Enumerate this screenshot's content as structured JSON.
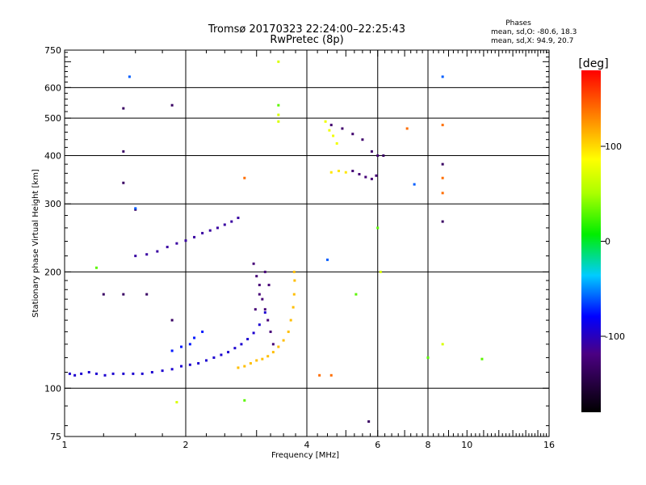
{
  "header": {
    "title_line1": "Tromsø 20170323 22:24:00–22:25:43",
    "title_line2": "RwPretec (8p)"
  },
  "stats": {
    "heading": "Phases",
    "line_o": "mean, sd,O: -80.6, 18.3",
    "line_x": "mean, sd,X:  94.9, 20.7"
  },
  "colorbar": {
    "label": "[deg]",
    "range": [
      -180,
      180
    ],
    "ticks": [
      {
        "value": 100,
        "label": "100"
      },
      {
        "value": 0,
        "label": "0"
      },
      {
        "value": -100,
        "label": "-100"
      }
    ]
  },
  "chart_data": {
    "type": "scatter",
    "xlabel": "Frequency [MHz]",
    "ylabel": "Stationary phase Virtual Height [km]",
    "xscale": "log",
    "yscale": "log",
    "xlim": [
      1,
      16
    ],
    "ylim": [
      75,
      750
    ],
    "xticks": [
      {
        "value": 1,
        "label": "1"
      },
      {
        "value": 2,
        "label": "2"
      },
      {
        "value": 4,
        "label": "4"
      },
      {
        "value": 6,
        "label": "6"
      },
      {
        "value": 8,
        "label": "8"
      },
      {
        "value": 10,
        "label": "10"
      },
      {
        "value": 16,
        "label": "16"
      }
    ],
    "yticks": [
      {
        "value": 75,
        "label": "75"
      },
      {
        "value": 100,
        "label": "100"
      },
      {
        "value": 200,
        "label": "200"
      },
      {
        "value": 300,
        "label": "300"
      },
      {
        "value": 400,
        "label": "400"
      },
      {
        "value": 500,
        "label": "500"
      },
      {
        "value": 600,
        "label": "600"
      },
      {
        "value": 750,
        "label": "750"
      }
    ],
    "grid_x": [
      2,
      4,
      6,
      8
    ],
    "grid_y": [
      100,
      200,
      300,
      400,
      500,
      600
    ],
    "traces": [
      {
        "phase": -95,
        "points": [
          [
            1.03,
            109
          ],
          [
            1.06,
            108
          ],
          [
            1.1,
            109
          ],
          [
            1.15,
            110
          ],
          [
            1.2,
            109
          ],
          [
            1.26,
            108
          ],
          [
            1.32,
            109
          ],
          [
            1.4,
            109
          ],
          [
            1.48,
            109
          ],
          [
            1.56,
            109
          ],
          [
            1.65,
            110
          ],
          [
            1.75,
            111
          ],
          [
            1.85,
            112
          ],
          [
            1.95,
            114
          ],
          [
            2.05,
            115
          ],
          [
            2.15,
            116
          ],
          [
            2.25,
            118
          ],
          [
            2.35,
            120
          ],
          [
            2.45,
            122
          ],
          [
            2.55,
            124
          ],
          [
            2.65,
            127
          ],
          [
            2.75,
            130
          ],
          [
            2.85,
            134
          ],
          [
            2.95,
            139
          ],
          [
            3.05,
            146
          ],
          [
            3.15,
            157
          ]
        ]
      },
      {
        "phase": -110,
        "points": [
          [
            1.5,
            220
          ],
          [
            1.6,
            222
          ],
          [
            1.7,
            226
          ],
          [
            1.8,
            232
          ],
          [
            1.9,
            237
          ],
          [
            2.0,
            241
          ],
          [
            2.1,
            246
          ],
          [
            2.2,
            252
          ],
          [
            2.3,
            256
          ],
          [
            2.4,
            260
          ],
          [
            2.5,
            265
          ],
          [
            2.6,
            270
          ],
          [
            2.7,
            276
          ]
        ]
      },
      {
        "phase": 110,
        "points": [
          [
            2.7,
            113
          ],
          [
            2.8,
            114
          ],
          [
            2.9,
            116
          ],
          [
            3.0,
            118
          ],
          [
            3.1,
            119
          ],
          [
            3.2,
            121
          ],
          [
            3.3,
            124
          ],
          [
            3.4,
            128
          ],
          [
            3.5,
            133
          ],
          [
            3.6,
            140
          ],
          [
            3.65,
            150
          ],
          [
            3.7,
            162
          ],
          [
            3.72,
            175
          ],
          [
            3.73,
            190
          ],
          [
            3.72,
            200
          ]
        ]
      },
      {
        "phase": -125,
        "points": [
          [
            2.95,
            210
          ],
          [
            3.0,
            195
          ],
          [
            3.05,
            185
          ],
          [
            3.1,
            170
          ],
          [
            3.15,
            160
          ],
          [
            3.2,
            150
          ],
          [
            3.25,
            140
          ],
          [
            3.3,
            130
          ],
          [
            3.05,
            175
          ],
          [
            3.15,
            200
          ],
          [
            2.98,
            160
          ],
          [
            3.22,
            185
          ]
        ]
      },
      {
        "phase": -130,
        "points": [
          [
            4.6,
            480
          ],
          [
            4.9,
            470
          ],
          [
            5.2,
            455
          ],
          [
            5.5,
            440
          ],
          [
            5.8,
            410
          ],
          [
            6.0,
            400
          ]
        ]
      },
      {
        "phase": -125,
        "points": [
          [
            5.2,
            365
          ],
          [
            5.4,
            358
          ],
          [
            5.6,
            352
          ],
          [
            5.8,
            348
          ],
          [
            5.95,
            355
          ]
        ]
      },
      {
        "phase": 80,
        "points": [
          [
            4.45,
            490
          ],
          [
            4.55,
            465
          ],
          [
            4.65,
            450
          ],
          [
            4.75,
            430
          ]
        ]
      },
      {
        "phase": 95,
        "points": [
          [
            4.6,
            362
          ],
          [
            4.8,
            365
          ],
          [
            5.0,
            362
          ]
        ]
      },
      {
        "phase": -75,
        "points": [
          [
            1.85,
            125
          ],
          [
            1.95,
            128
          ],
          [
            2.05,
            130
          ],
          [
            2.1,
            135
          ],
          [
            2.2,
            140
          ]
        ]
      },
      {
        "phase": -135,
        "points": [
          [
            1.4,
            530
          ],
          [
            1.85,
            540
          ],
          [
            1.4,
            410
          ],
          [
            1.4,
            340
          ],
          [
            1.5,
            290
          ],
          [
            1.6,
            175
          ],
          [
            1.4,
            175
          ],
          [
            1.85,
            150
          ],
          [
            1.25,
            175
          ],
          [
            8.7,
            270
          ],
          [
            8.7,
            380
          ],
          [
            6.2,
            400
          ],
          [
            5.7,
            82
          ]
        ]
      },
      {
        "phase": -60,
        "points": [
          [
            1.45,
            640
          ],
          [
            1.5,
            292
          ],
          [
            8.7,
            640
          ],
          [
            4.5,
            215
          ],
          [
            7.4,
            337
          ]
        ]
      },
      {
        "phase": 70,
        "points": [
          [
            1.9,
            92
          ],
          [
            3.4,
            700
          ],
          [
            3.4,
            490
          ],
          [
            3.4,
            510
          ],
          [
            8.7,
            130
          ],
          [
            6.1,
            200
          ]
        ]
      },
      {
        "phase": 30,
        "points": [
          [
            2.8,
            93
          ],
          [
            3.4,
            540
          ],
          [
            1.2,
            205
          ],
          [
            5.3,
            175
          ],
          [
            8.0,
            120
          ],
          [
            10.9,
            119
          ],
          [
            6.0,
            260
          ]
        ]
      },
      {
        "phase": 140,
        "points": [
          [
            2.8,
            350
          ],
          [
            4.3,
            108
          ],
          [
            4.6,
            108
          ],
          [
            7.1,
            470
          ],
          [
            8.7,
            480
          ],
          [
            8.7,
            320
          ],
          [
            8.7,
            350
          ]
        ]
      }
    ]
  }
}
